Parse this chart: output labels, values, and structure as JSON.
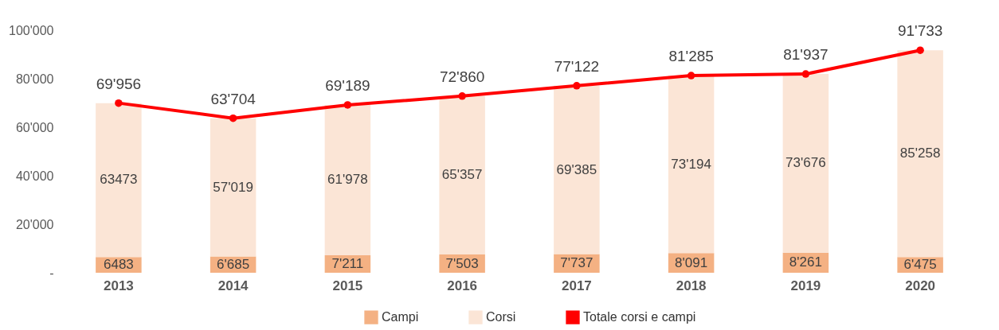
{
  "chart_data": {
    "type": "bar",
    "stacked": true,
    "legend": "bottom",
    "marker": "circle",
    "categories": [
      "2013",
      "2014",
      "2015",
      "2016",
      "2017",
      "2018",
      "2019",
      "2020"
    ],
    "ylim": [
      0,
      100000
    ],
    "yticks": [
      {
        "value": 0,
        "label": "-"
      },
      {
        "value": 20000,
        "label": "20'000"
      },
      {
        "value": 40000,
        "label": "40'000"
      },
      {
        "value": 60000,
        "label": "60'000"
      },
      {
        "value": 80000,
        "label": "80'000"
      },
      {
        "value": 100000,
        "label": "100'000"
      }
    ],
    "series": [
      {
        "name": "Campi",
        "type": "bar",
        "color": "#f4b183",
        "values": [
          6483,
          6685,
          7211,
          7503,
          7737,
          8091,
          8261,
          6475
        ],
        "value_labels": [
          "6483",
          "6'685",
          "7'211",
          "7'503",
          "7'737",
          "8'091",
          "8'261",
          "6'475"
        ]
      },
      {
        "name": "Corsi",
        "type": "bar",
        "color": "#fbe5d6",
        "values": [
          63473,
          57019,
          61978,
          65357,
          69385,
          73194,
          73676,
          85258
        ],
        "value_labels": [
          "63473",
          "57'019",
          "61'978",
          "65'357",
          "69'385",
          "73'194",
          "73'676",
          "85'258"
        ]
      },
      {
        "name": "Totale corsi e campi",
        "type": "line",
        "color": "#ff0000",
        "values": [
          69956,
          63704,
          69189,
          72860,
          77122,
          81285,
          81937,
          91733
        ],
        "value_labels": [
          "69'956",
          "63'704",
          "69'189",
          "72'860",
          "77'122",
          "81'285",
          "81'937",
          "91'733"
        ]
      }
    ]
  }
}
